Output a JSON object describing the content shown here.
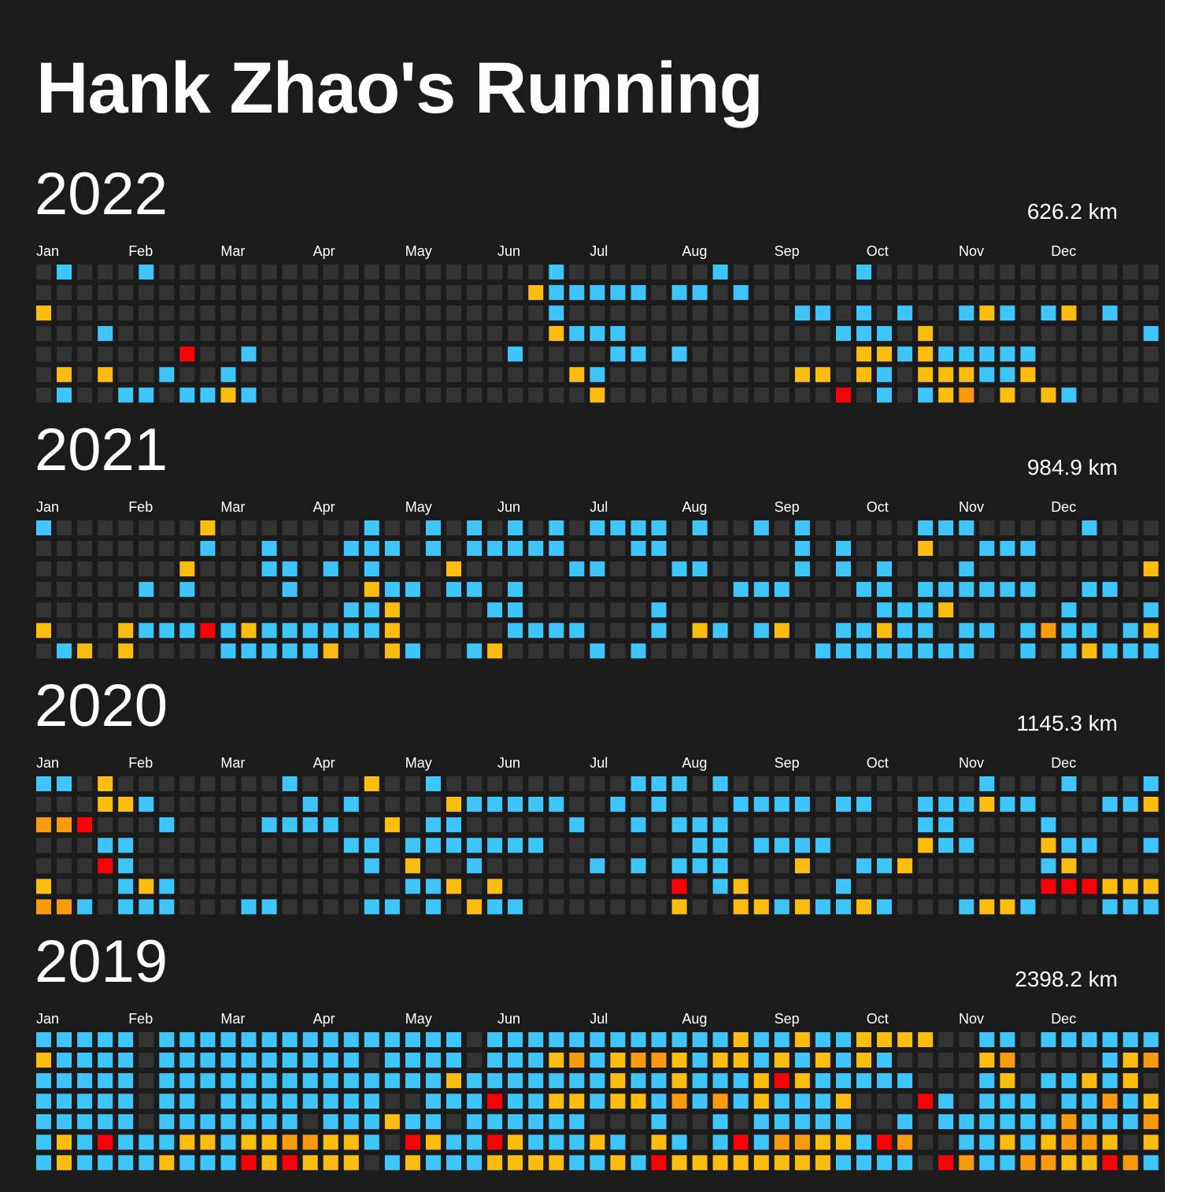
{
  "title": "Hank Zhao's Running",
  "colors": {
    "background": "#1b1b1b",
    "empty": "#333333",
    "light": "#3ec6fc",
    "medium": "#fcbd0f",
    "long": "#fc9a0e",
    "ultra": "#fc0008"
  },
  "chart_data": {
    "type": "heatmap",
    "months": [
      "Jan",
      "Feb",
      "Mar",
      "Apr",
      "May",
      "Jun",
      "Jul",
      "Aug",
      "Sep",
      "Oct",
      "Nov",
      "Dec"
    ],
    "legend": {
      "0": "empty",
      "1": "light",
      "2": "medium",
      "3": "long",
      "4": "ultra"
    },
    "years": [
      {
        "year": "2022",
        "total": "626.2 km",
        "grid": [
          "0100010000000000000000000100000001000000100000000000000",
          "0000000000000000000000002111110110100000000000000000000",
          "2000000000000000000000000100000000000110101001210120100",
          "0001000000000000000000000211100000000001110200000000001",
          "0000000400100000000000010000110100000000221211111000000",
          "0202001001000000000000000021000000000220210222112000000",
          "0100110112100000000000000002000000000004010123020210000"
        ]
      },
      {
        "year": "2021",
        "total": "984.9 km",
        "grid": [
          "1000000020000000100101010101111010010100000111000001000",
          "0000000010010001110101111100011000000101000200111000000",
          "0000000200011010100020000011000110000101010001000000002",
          "0000010100001000211011010000000000111000110111111001100",
          "0000000000000001120000110000001000000000011120000010001",
          "2000211141211111120000011110001021012001121101101311012",
          "0120200001111120021001200001010000000011111111001012111"
        ]
      },
      {
        "year": "2020",
        "total": "1145.3 km",
        "grid": [
          "1102000000001000200100000000011101000000000000100010001",
          "0002210000000101000021111100101000111101100111211000112",
          "3340001000011110020110000010010111000000000110000100000",
          "0001100000000001101111111000000011011110000211000211001",
          "0004100000000000102001000001010111000200112000000120000",
          "2000121000000000001120200000000401200001000000000444222",
          "3310111000110000110102110000000200221211210001221000111"
        ]
      },
      {
        "year": "2019",
        "total": "2398.2 km",
        "grid": [
          "1111101111111111111110111111111111211211222200110111111",
          "2111101111111111011110111231233212212121210000230000123",
          "1111101111111111111121111111211211124211111000120112120",
          "1111101101111111100111411221221313121112000410111011312",
          "1111101111111011121101111110001001011111001011111131113",
          "1214111221223322104211421112102101413322143001121233202",
          "1211112111424222012111222211214222222221111043113322431"
        ]
      }
    ]
  }
}
